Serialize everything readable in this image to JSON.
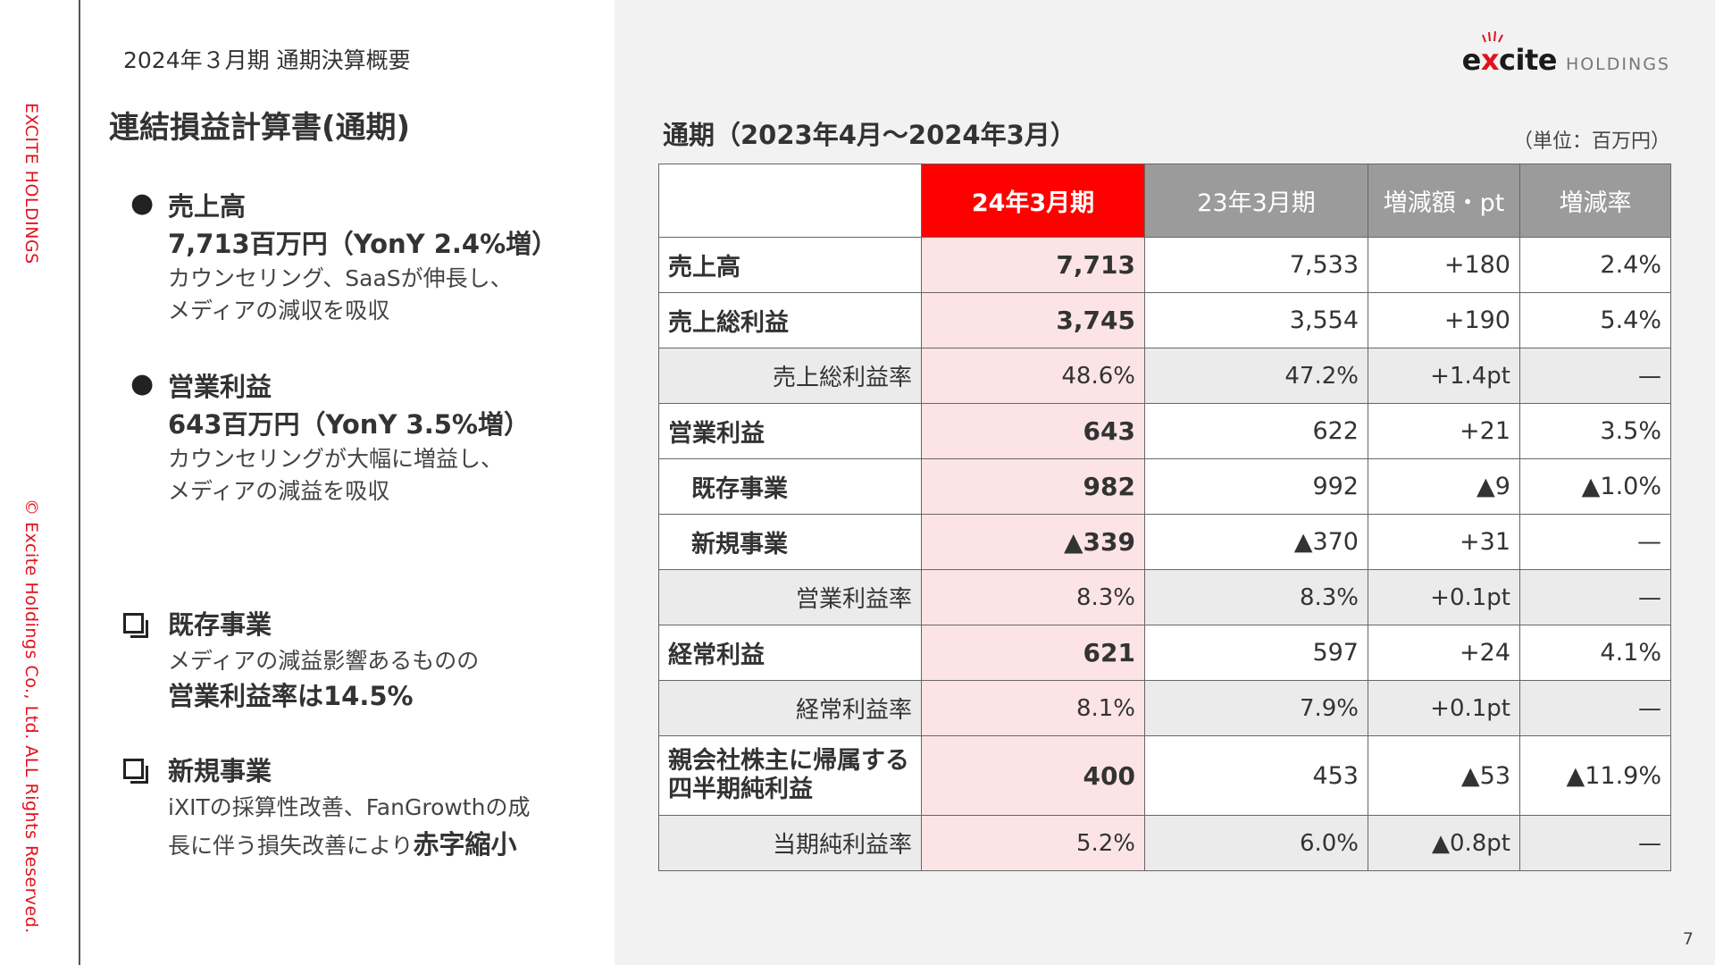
{
  "sidebar": {
    "company_text": "EXCITE HOLDINGS",
    "copyright_text": "© Excite Holdings Co., Ltd. ALL Rights Reserved."
  },
  "header": {
    "subtitle": "2024年３月期 通期決算概要",
    "title": "連結損益計算書(通期)"
  },
  "summary": {
    "bullets": [
      {
        "heading": "売上高",
        "value": "7,713百万円（YonY 2.4%増）",
        "lines": [
          "カウンセリング、SaaSが伸長し、",
          "メディアの減収を吸収"
        ]
      },
      {
        "heading": "営業利益",
        "value": "643百万円（YonY 3.5%増）",
        "lines": [
          "カウンセリングが大幅に増益し、",
          "メディアの減益を吸収"
        ]
      }
    ],
    "existing": {
      "heading": "既存事業",
      "line": "メディアの減益影響あるものの",
      "bold": "営業利益率は14.5%"
    },
    "new": {
      "heading": "新規事業",
      "line1": "iXITの採算性改善、FanGrowthの成",
      "line2_prefix": "長に伴う損失改善により",
      "line2_bold": "赤字縮小"
    }
  },
  "logo": {
    "word_pre": "e",
    "word_x": "x",
    "word_post": "cite",
    "suffix": "HOLDINGS",
    "accent_color": "#e0121e"
  },
  "table_title": "通期（2023年4月〜2024年3月）",
  "unit": "（単位：百万円）",
  "table": {
    "headers": [
      "",
      "24年3月期",
      "23年3月期",
      "増減額・pt",
      "増減率"
    ],
    "rows": [
      {
        "label": "売上高",
        "c1": "7,713",
        "c2": "7,533",
        "c3": "+180",
        "c4": "2.4%"
      },
      {
        "label": "売上総利益",
        "c1": "3,745",
        "c2": "3,554",
        "c3": "+190",
        "c4": "5.4%"
      },
      {
        "label": "売上総利益率",
        "c1": "48.6%",
        "c2": "47.2%",
        "c3": "+1.4pt",
        "c4": "—"
      },
      {
        "label": "営業利益",
        "c1": "643",
        "c2": "622",
        "c3": "+21",
        "c4": "3.5%"
      },
      {
        "label": "既存事業",
        "c1": "982",
        "c2": "992",
        "c3": "▲9",
        "c4": "▲1.0%"
      },
      {
        "label": "新規事業",
        "c1": "▲339",
        "c2": "▲370",
        "c3": "+31",
        "c4": "—"
      },
      {
        "label": "営業利益率",
        "c1": "8.3%",
        "c2": "8.3%",
        "c3": "+0.1pt",
        "c4": "—"
      },
      {
        "label": "経常利益",
        "c1": "621",
        "c2": "597",
        "c3": "+24",
        "c4": "4.1%"
      },
      {
        "label": "経常利益率",
        "c1": "8.1%",
        "c2": "7.9%",
        "c3": "+0.1pt",
        "c4": "—"
      },
      {
        "label1": "親会社株主に帰属する",
        "label2": "四半期純利益",
        "c1": "400",
        "c2": "453",
        "c3": "▲53",
        "c4": "▲11.9%"
      },
      {
        "label": "当期純利益率",
        "c1": "5.2%",
        "c2": "6.0%",
        "c3": "▲0.8pt",
        "c4": "—"
      }
    ]
  },
  "page_number": "7"
}
